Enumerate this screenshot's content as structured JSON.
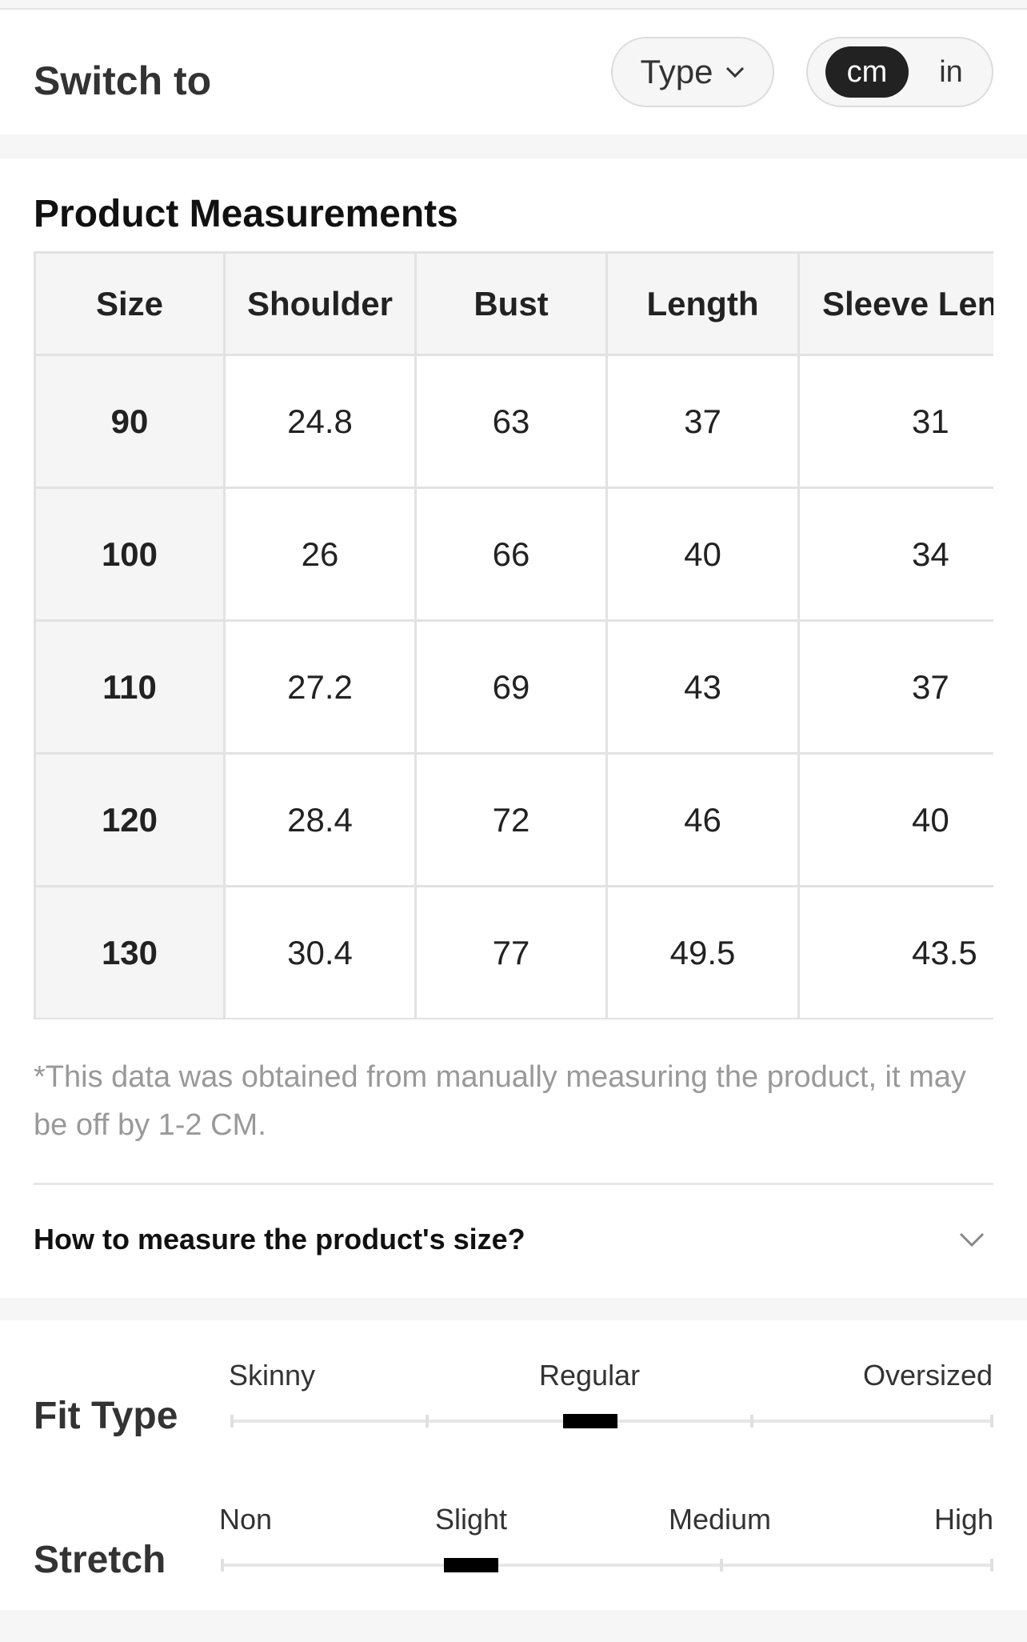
{
  "switch_bar": {
    "title": "Switch to",
    "type_label": "Type",
    "units": {
      "active": "cm",
      "inactive": "in"
    }
  },
  "measurements": {
    "title": "Product Measurements",
    "headers": [
      "Size",
      "Shoulder",
      "Bust",
      "Length",
      "Sleeve Leng"
    ],
    "rows": [
      [
        "90",
        "24.8",
        "63",
        "37",
        "31"
      ],
      [
        "100",
        "26",
        "66",
        "40",
        "34"
      ],
      [
        "110",
        "27.2",
        "69",
        "43",
        "37"
      ],
      [
        "120",
        "28.4",
        "72",
        "46",
        "40"
      ],
      [
        "130",
        "30.4",
        "77",
        "49.5",
        "43.5"
      ]
    ],
    "note": "*This data was obtained from manually measuring the product, it may be off by 1-2 CM.",
    "howto": "How to measure the product's size?"
  },
  "fit": {
    "fit_type": {
      "label": "Fit Type",
      "scale": [
        "Skinny",
        "Regular",
        "Oversized"
      ],
      "selected": "Regular"
    },
    "stretch": {
      "label": "Stretch",
      "scale": [
        "Non",
        "Slight",
        "Medium",
        "High"
      ],
      "selected": "Slight"
    }
  }
}
